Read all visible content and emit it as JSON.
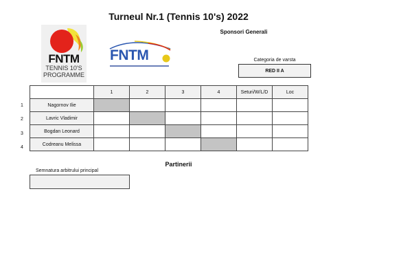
{
  "title": "Turneul Nr.1 (Tennis 10's) 2022",
  "sponsors_label": "Sponsori Generali",
  "category": {
    "label": "Categoria de varsta",
    "value": "RED II A"
  },
  "logos": [
    {
      "name": "FNTM Tennis 10's Programme",
      "text": "FNTM",
      "subtext": "TENNIS 10'S PROGRAMME"
    },
    {
      "name": "FNTM Federatia",
      "text": "FNTM"
    }
  ],
  "table": {
    "headers": [
      "",
      "1",
      "2",
      "3",
      "4",
      "Seturi/W/L/D",
      "Loc"
    ],
    "rows": [
      {
        "num": "1",
        "name": "Nagornov Ilie"
      },
      {
        "num": "2",
        "name": "Lavric Vladimir"
      },
      {
        "num": "3",
        "name": "Bogdan Leonard"
      },
      {
        "num": "4",
        "name": "Codreanu Melissa"
      }
    ]
  },
  "partners_label": "Partinerii",
  "signature_label": "Semnatura arbitrului principal",
  "colors": {
    "diagonal": "#c4c4c4",
    "header_bg": "#f1f1f1",
    "logo_blue": "#2a56b0"
  }
}
